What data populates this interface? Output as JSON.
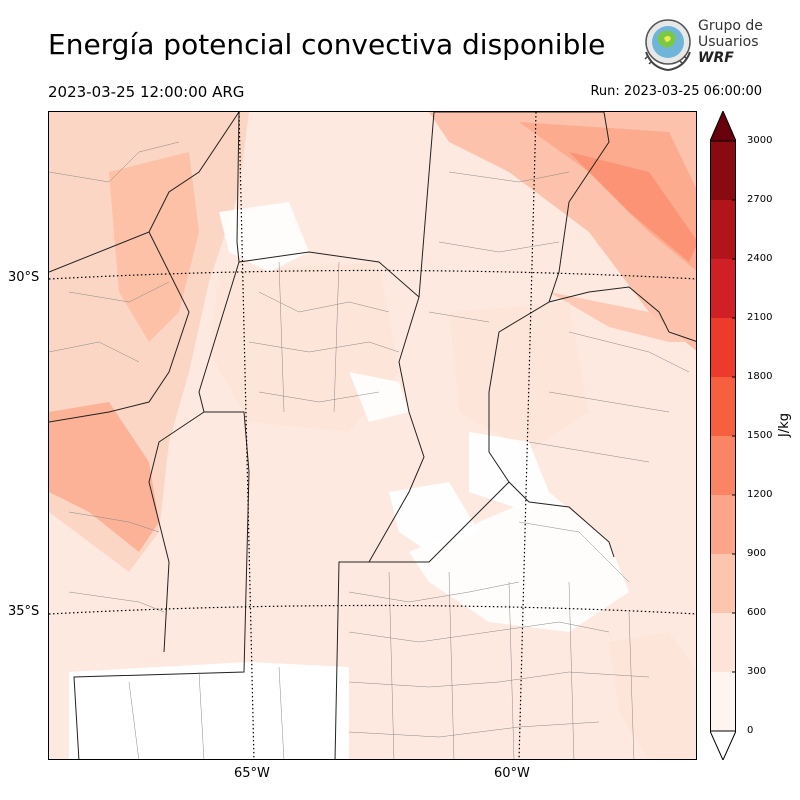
{
  "header": {
    "title": "Energía potencial convectiva disponible",
    "valid_time": "2023-03-25 12:00:00 ARG",
    "run_time": "Run: 2023-03-25 06:00:00"
  },
  "logo": {
    "line1": "Grupo de",
    "line2": "Usuarios",
    "line3": "WRF"
  },
  "map": {
    "lat_labels": [
      "30°S",
      "35°S"
    ],
    "lon_labels": [
      "65°W",
      "60°W"
    ]
  },
  "colorbar": {
    "unit": "J/kg",
    "ticks": [
      "0",
      "300",
      "600",
      "900",
      "1200",
      "1500",
      "1800",
      "2100",
      "2400",
      "2700",
      "3000"
    ],
    "colors": [
      "#fff5f0",
      "#fee4d8",
      "#fcc5ae",
      "#fca588",
      "#fb8464",
      "#f6603f",
      "#ec3b2b",
      "#d02026",
      "#b11419",
      "#8a0a12",
      "#67000d"
    ],
    "extend": "both"
  }
}
